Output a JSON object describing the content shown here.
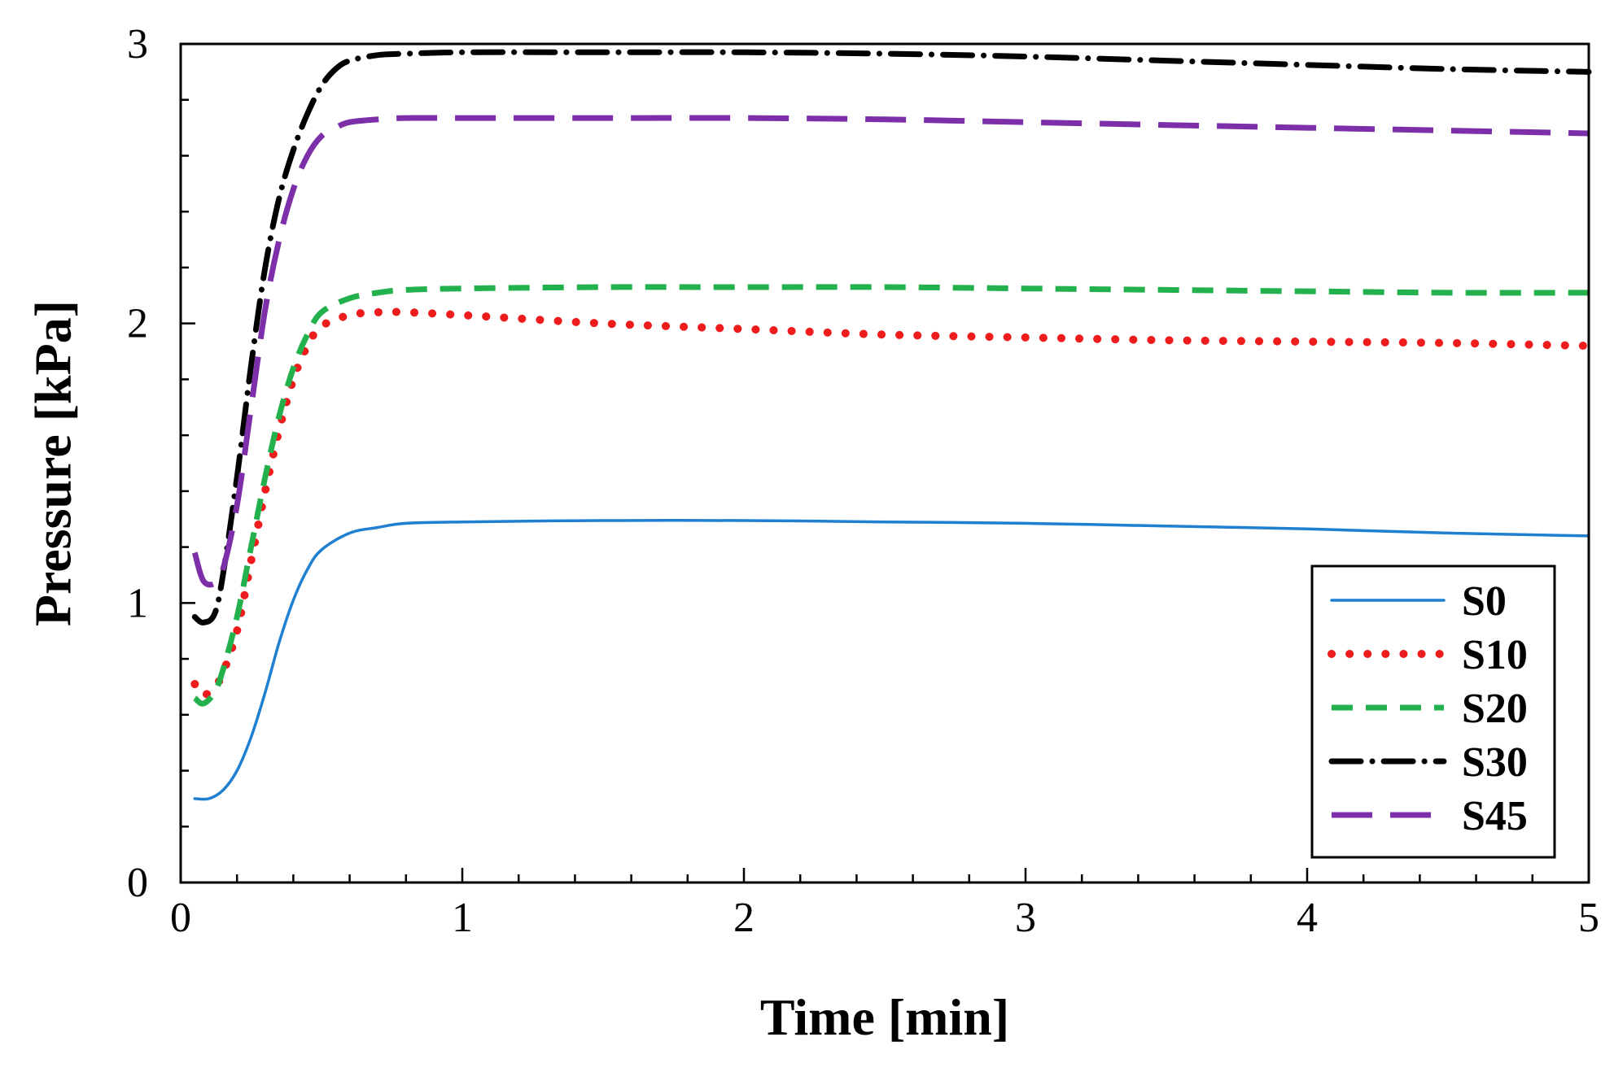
{
  "chart_data": {
    "type": "line",
    "title": "",
    "xlabel": "Time [min]",
    "ylabel": "Pressure [kPa]",
    "xlim": [
      0,
      5
    ],
    "ylim": [
      0,
      3
    ],
    "xticks": [
      0,
      1,
      2,
      3,
      4,
      5
    ],
    "yticks": [
      0,
      1,
      2,
      3
    ],
    "x_minor_step": 0.2,
    "y_minor_step": 0.2,
    "grid": false,
    "legend_position": "bottom-right",
    "series": [
      {
        "name": "S0",
        "color": "#1f7fd0",
        "style": "solid",
        "x": [
          0.05,
          0.1,
          0.15,
          0.2,
          0.25,
          0.3,
          0.35,
          0.4,
          0.45,
          0.5,
          0.6,
          0.7,
          0.8,
          1.0,
          1.5,
          2.0,
          2.5,
          3.0,
          3.5,
          4.0,
          4.5,
          5.0
        ],
        "y": [
          0.3,
          0.3,
          0.33,
          0.4,
          0.52,
          0.68,
          0.86,
          1.01,
          1.12,
          1.19,
          1.25,
          1.27,
          1.285,
          1.29,
          1.295,
          1.295,
          1.29,
          1.285,
          1.275,
          1.265,
          1.25,
          1.24
        ]
      },
      {
        "name": "S10",
        "color": "#ee1c1c",
        "style": "dotted",
        "x": [
          0.05,
          0.08,
          0.12,
          0.15,
          0.2,
          0.25,
          0.3,
          0.35,
          0.4,
          0.45,
          0.5,
          0.6,
          0.7,
          0.8,
          1.0,
          1.5,
          2.0,
          2.5,
          3.0,
          3.5,
          4.0,
          4.5,
          5.0
        ],
        "y": [
          0.71,
          0.67,
          0.7,
          0.75,
          0.9,
          1.15,
          1.4,
          1.62,
          1.8,
          1.92,
          1.99,
          2.03,
          2.04,
          2.04,
          2.03,
          2.0,
          1.98,
          1.96,
          1.95,
          1.94,
          1.935,
          1.93,
          1.92
        ]
      },
      {
        "name": "S20",
        "color": "#22b14c",
        "style": "dashed",
        "x": [
          0.05,
          0.08,
          0.12,
          0.15,
          0.2,
          0.25,
          0.3,
          0.35,
          0.4,
          0.45,
          0.5,
          0.6,
          0.7,
          0.8,
          1.0,
          1.5,
          2.0,
          2.5,
          3.0,
          3.5,
          4.0,
          4.5,
          5.0
        ],
        "y": [
          0.66,
          0.64,
          0.68,
          0.76,
          0.95,
          1.2,
          1.45,
          1.67,
          1.84,
          1.96,
          2.04,
          2.09,
          2.11,
          2.12,
          2.125,
          2.13,
          2.13,
          2.13,
          2.125,
          2.12,
          2.115,
          2.11,
          2.11
        ]
      },
      {
        "name": "S30",
        "color": "#000000",
        "style": "dashdot",
        "x": [
          0.05,
          0.08,
          0.12,
          0.15,
          0.2,
          0.25,
          0.3,
          0.35,
          0.4,
          0.45,
          0.5,
          0.55,
          0.6,
          0.7,
          0.8,
          1.0,
          1.5,
          2.0,
          2.5,
          3.0,
          3.5,
          4.0,
          4.5,
          5.0
        ],
        "y": [
          0.95,
          0.93,
          0.96,
          1.1,
          1.45,
          1.85,
          2.2,
          2.45,
          2.62,
          2.75,
          2.85,
          2.91,
          2.94,
          2.96,
          2.965,
          2.97,
          2.97,
          2.97,
          2.965,
          2.955,
          2.94,
          2.925,
          2.91,
          2.9
        ]
      },
      {
        "name": "S45",
        "color": "#7c2fa8",
        "style": "longdash",
        "x": [
          0.05,
          0.08,
          0.12,
          0.15,
          0.2,
          0.25,
          0.3,
          0.35,
          0.4,
          0.45,
          0.5,
          0.55,
          0.6,
          0.7,
          0.8,
          1.0,
          1.5,
          2.0,
          2.5,
          3.0,
          3.5,
          4.0,
          4.5,
          5.0
        ],
        "y": [
          1.18,
          1.08,
          1.07,
          1.12,
          1.35,
          1.7,
          2.05,
          2.3,
          2.48,
          2.6,
          2.67,
          2.7,
          2.72,
          2.73,
          2.735,
          2.735,
          2.735,
          2.735,
          2.73,
          2.72,
          2.71,
          2.7,
          2.69,
          2.68
        ]
      }
    ]
  }
}
